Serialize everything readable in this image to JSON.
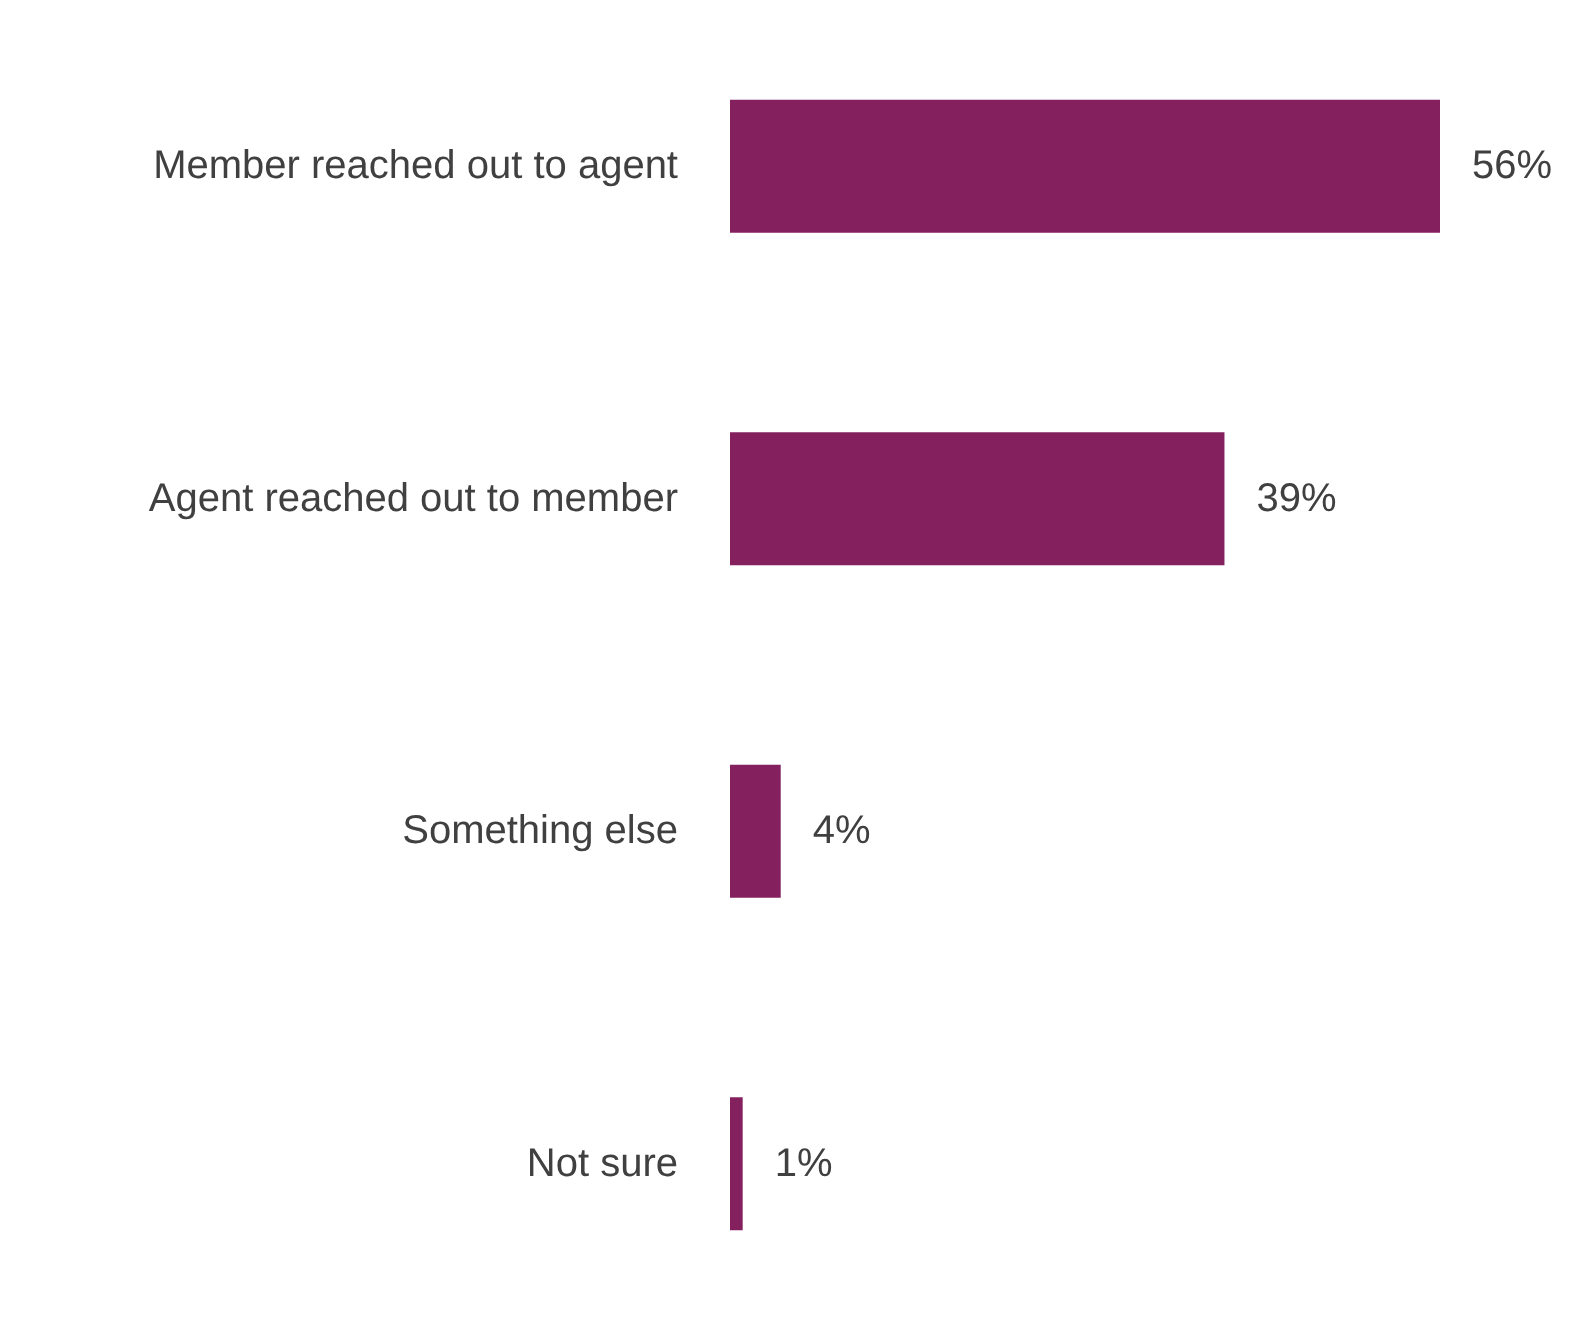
{
  "chart_data": {
    "type": "bar",
    "orientation": "horizontal",
    "categories": [
      "Member reached out to agent",
      "Agent reached out to member",
      "Something else",
      "Not sure"
    ],
    "values": [
      56,
      39,
      4,
      1
    ],
    "color": "#85205f",
    "value_labels": [
      "56%",
      "39%",
      "4%",
      "1%"
    ]
  }
}
